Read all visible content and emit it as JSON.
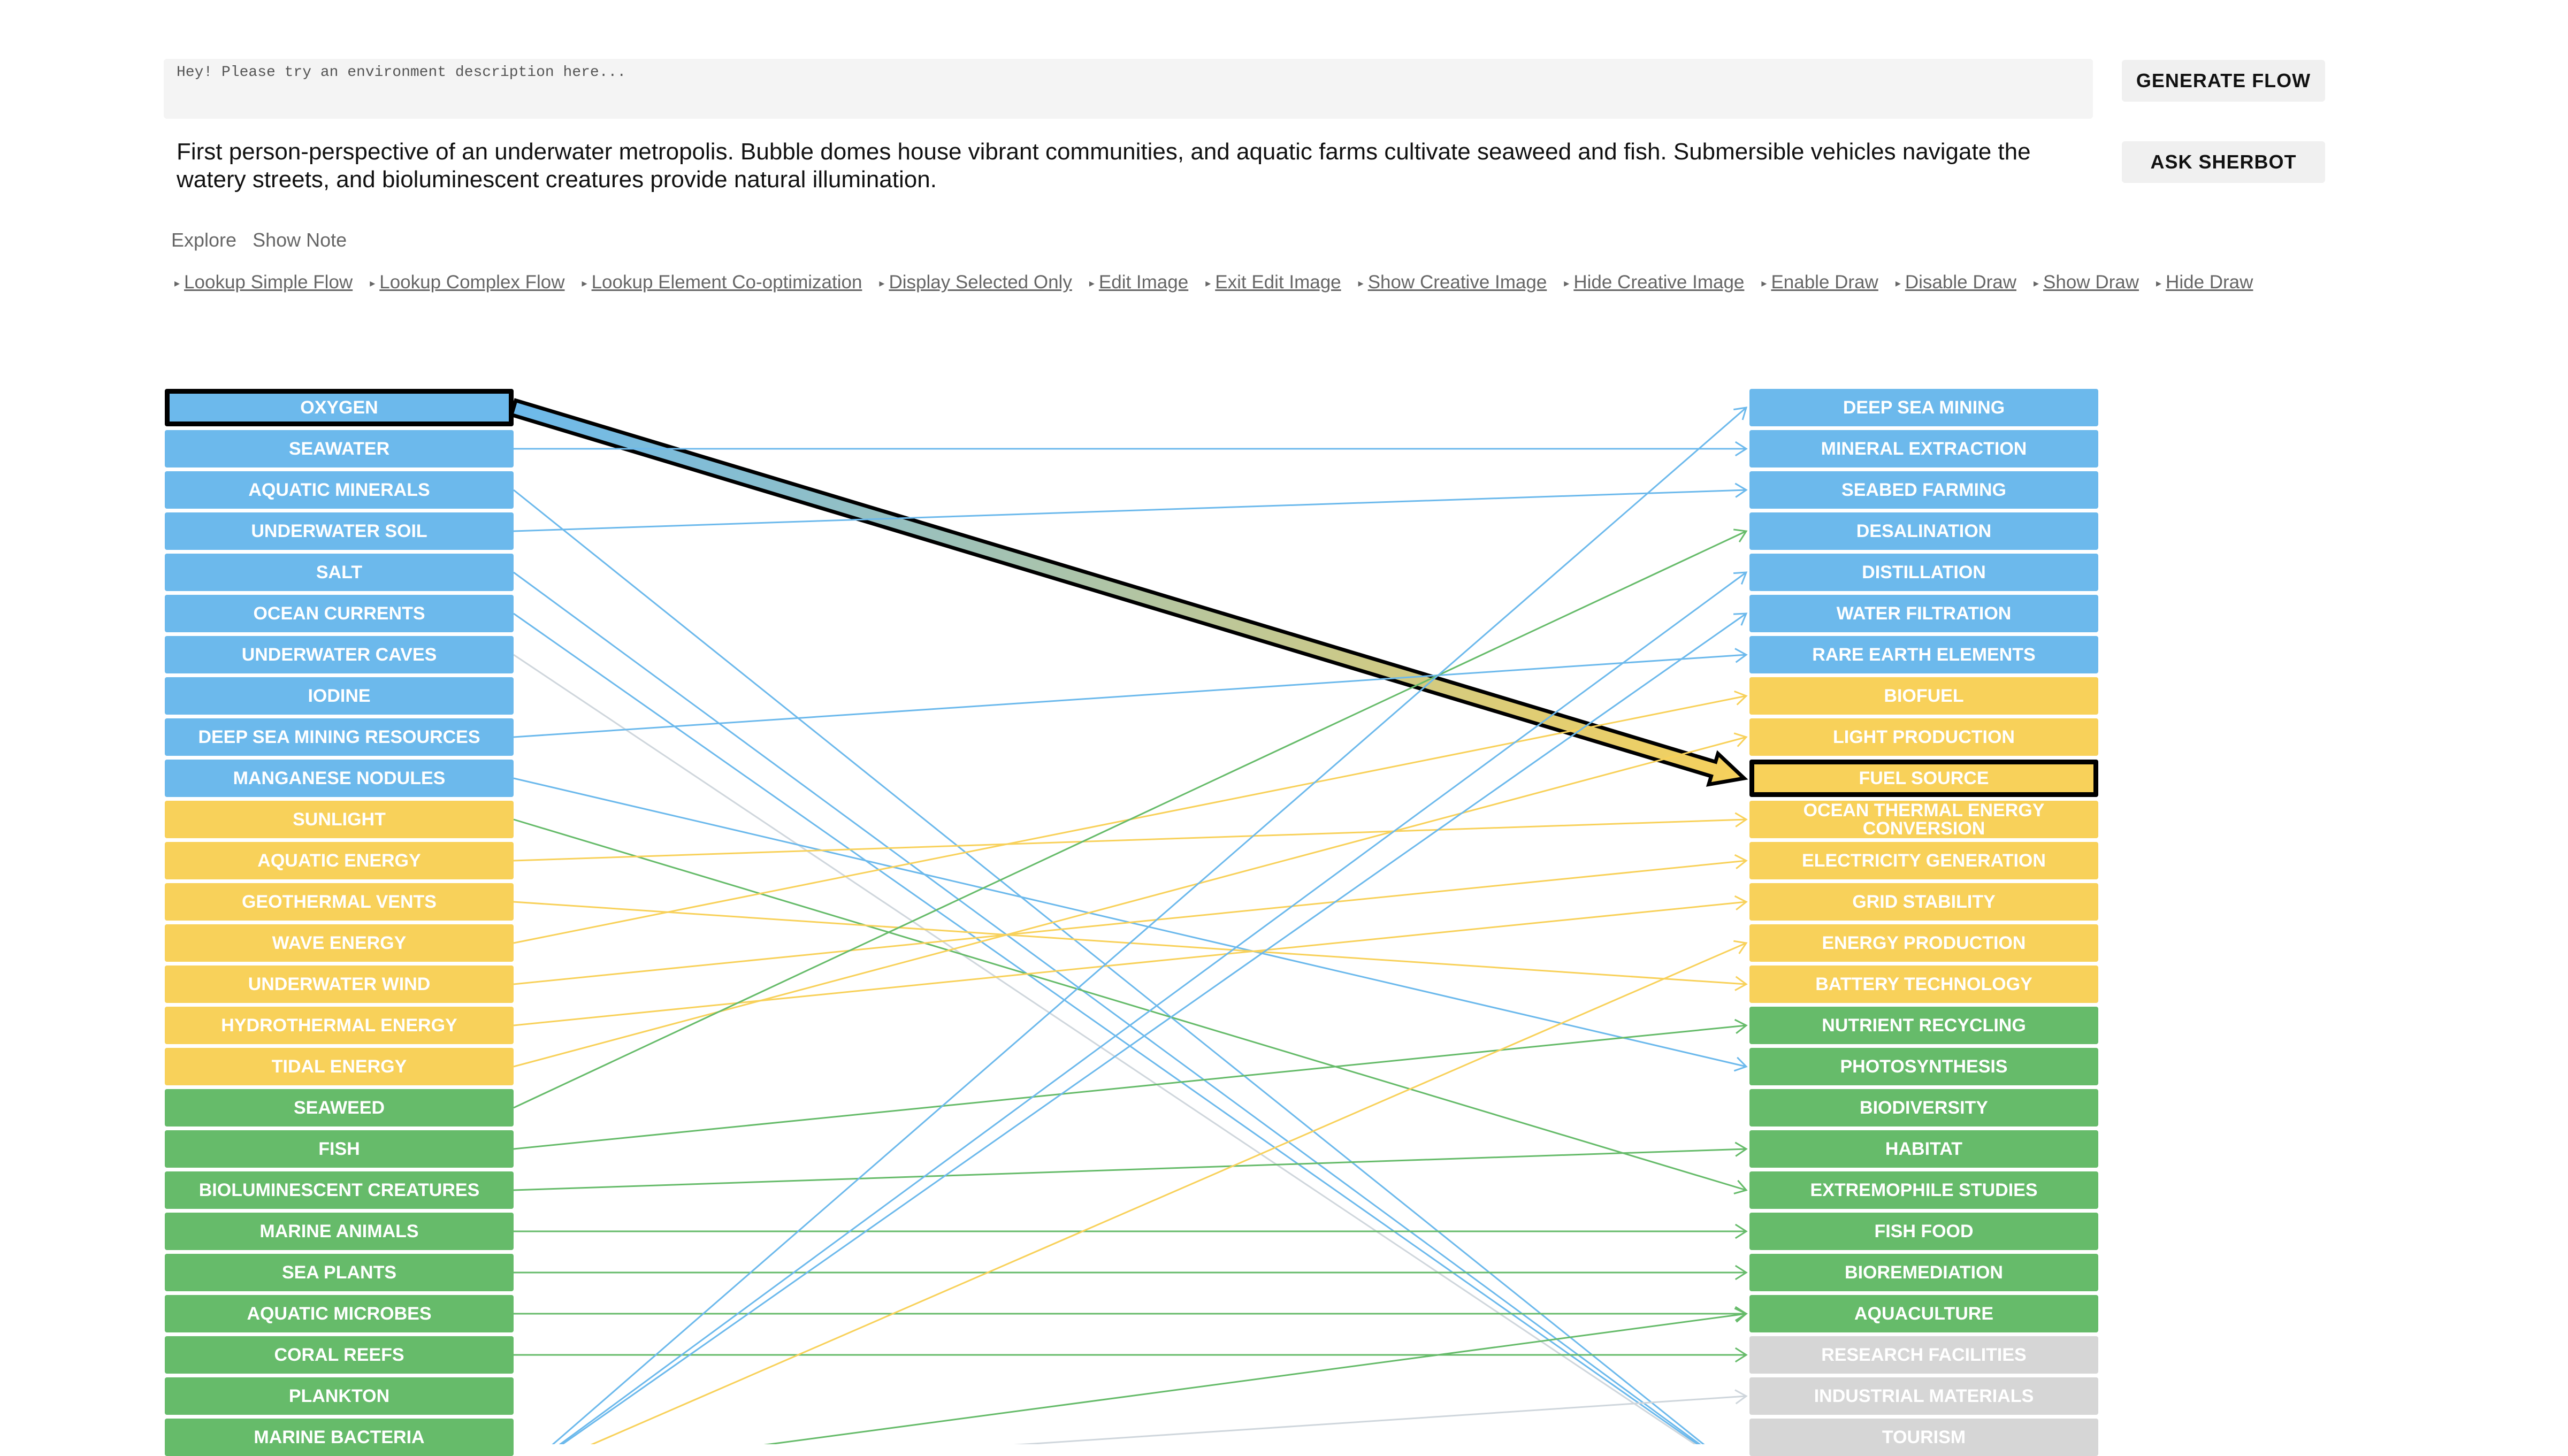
{
  "input": {
    "placeholder": "Hey! Please try an environment description here..."
  },
  "description": "First person-perspective of an underwater metropolis. Bubble domes house vibrant communities, and aquatic farms cultivate seaweed and fish. Submersible vehicles navigate the watery streets, and bioluminescent creatures provide natural illumination.",
  "buttons": {
    "generate_flow": "GENERATE FLOW",
    "ask_sherbot": "ASK SHERBOT"
  },
  "tabs": [
    "Explore",
    "Show Note"
  ],
  "links": [
    "Lookup Simple Flow",
    "Lookup Complex Flow",
    "Lookup Element Co-optimization",
    "Display Selected Only",
    "Edit Image",
    "Exit Edit Image",
    "Show Creative Image",
    "Hide Creative Image",
    "Enable Draw",
    "Disable Draw",
    "Show Draw",
    "Hide Draw"
  ],
  "colors": {
    "blue": "#6cb9ec",
    "yellow": "#f8d15a",
    "green": "#66bb6a",
    "gray": "#d6d6d6",
    "selected_border": "#000000"
  },
  "left_nodes": [
    {
      "label": "OXYGEN",
      "group": "blue",
      "selected": true
    },
    {
      "label": "SEAWATER",
      "group": "blue"
    },
    {
      "label": "AQUATIC MINERALS",
      "group": "blue"
    },
    {
      "label": "UNDERWATER SOIL",
      "group": "blue"
    },
    {
      "label": "SALT",
      "group": "blue"
    },
    {
      "label": "OCEAN CURRENTS",
      "group": "blue"
    },
    {
      "label": "UNDERWATER CAVES",
      "group": "blue"
    },
    {
      "label": "IODINE",
      "group": "blue"
    },
    {
      "label": "DEEP SEA MINING RESOURCES",
      "group": "blue"
    },
    {
      "label": "MANGANESE NODULES",
      "group": "blue"
    },
    {
      "label": "SUNLIGHT",
      "group": "yellow"
    },
    {
      "label": "AQUATIC ENERGY",
      "group": "yellow"
    },
    {
      "label": "GEOTHERMAL VENTS",
      "group": "yellow"
    },
    {
      "label": "WAVE ENERGY",
      "group": "yellow"
    },
    {
      "label": "UNDERWATER WIND",
      "group": "yellow"
    },
    {
      "label": "HYDROTHERMAL ENERGY",
      "group": "yellow"
    },
    {
      "label": "TIDAL ENERGY",
      "group": "yellow"
    },
    {
      "label": "SEAWEED",
      "group": "green"
    },
    {
      "label": "FISH",
      "group": "green"
    },
    {
      "label": "BIOLUMINESCENT CREATURES",
      "group": "green"
    },
    {
      "label": "MARINE ANIMALS",
      "group": "green"
    },
    {
      "label": "SEA PLANTS",
      "group": "green"
    },
    {
      "label": "AQUATIC MICROBES",
      "group": "green"
    },
    {
      "label": "CORAL REEFS",
      "group": "green"
    },
    {
      "label": "PLANKTON",
      "group": "green"
    },
    {
      "label": "MARINE BACTERIA",
      "group": "green"
    }
  ],
  "right_nodes": [
    {
      "label": "DEEP SEA MINING",
      "group": "blue"
    },
    {
      "label": "MINERAL EXTRACTION",
      "group": "blue"
    },
    {
      "label": "SEABED FARMING",
      "group": "blue"
    },
    {
      "label": "DESALINATION",
      "group": "blue"
    },
    {
      "label": "DISTILLATION",
      "group": "blue"
    },
    {
      "label": "WATER FILTRATION",
      "group": "blue"
    },
    {
      "label": "RARE EARTH ELEMENTS",
      "group": "blue"
    },
    {
      "label": "BIOFUEL",
      "group": "yellow"
    },
    {
      "label": "LIGHT PRODUCTION",
      "group": "yellow"
    },
    {
      "label": "FUEL SOURCE",
      "group": "yellow",
      "selected": true
    },
    {
      "label": "OCEAN THERMAL ENERGY CONVERSION",
      "group": "yellow"
    },
    {
      "label": "ELECTRICITY GENERATION",
      "group": "yellow"
    },
    {
      "label": "GRID STABILITY",
      "group": "yellow"
    },
    {
      "label": "ENERGY PRODUCTION",
      "group": "yellow"
    },
    {
      "label": "BATTERY TECHNOLOGY",
      "group": "yellow"
    },
    {
      "label": "NUTRIENT RECYCLING",
      "group": "green"
    },
    {
      "label": "PHOTOSYNTHESIS",
      "group": "green"
    },
    {
      "label": "BIODIVERSITY",
      "group": "green"
    },
    {
      "label": "HABITAT",
      "group": "green"
    },
    {
      "label": "EXTREMOPHILE STUDIES",
      "group": "green"
    },
    {
      "label": "FISH FOOD",
      "group": "green"
    },
    {
      "label": "BIOREMEDIATION",
      "group": "green"
    },
    {
      "label": "AQUACULTURE",
      "group": "green"
    },
    {
      "label": "RESEARCH FACILITIES",
      "group": "gray"
    },
    {
      "label": "INDUSTRIAL MATERIALS",
      "group": "gray"
    },
    {
      "label": "TOURISM",
      "group": "gray"
    }
  ],
  "links_flow": [
    {
      "from": 0,
      "to": 9,
      "highlight": true
    },
    {
      "from": 1,
      "to": 1,
      "color": "blue"
    },
    {
      "from": 3,
      "to": 2,
      "color": "blue"
    },
    {
      "from": 2,
      "to": 26,
      "color": "blue"
    },
    {
      "from": 4,
      "to": 26,
      "color": "blue"
    },
    {
      "from": 5,
      "to": 26,
      "color": "blue"
    },
    {
      "from": 6,
      "to": 26,
      "color": "gray"
    },
    {
      "from": 8,
      "to": 6,
      "color": "blue"
    },
    {
      "from": 9,
      "to": 16,
      "color": "blue"
    },
    {
      "from": 10,
      "to": 19,
      "color": "green"
    },
    {
      "from": 11,
      "to": 10,
      "color": "yellow"
    },
    {
      "from": 12,
      "to": 14,
      "color": "yellow"
    },
    {
      "from": 13,
      "to": 7,
      "color": "yellow"
    },
    {
      "from": 14,
      "to": 11,
      "color": "yellow"
    },
    {
      "from": 15,
      "to": 12,
      "color": "yellow"
    },
    {
      "from": 16,
      "to": 8,
      "color": "yellow"
    },
    {
      "from": 17,
      "to": 3,
      "color": "green"
    },
    {
      "from": 18,
      "to": 15,
      "color": "green"
    },
    {
      "from": 19,
      "to": 18,
      "color": "green"
    },
    {
      "from": 20,
      "to": 20,
      "color": "green"
    },
    {
      "from": 21,
      "to": 21,
      "color": "green"
    },
    {
      "from": 22,
      "to": 22,
      "color": "green"
    },
    {
      "from": 23,
      "to": 23,
      "color": "green"
    },
    {
      "from": 26,
      "to": 0,
      "color": "blue"
    },
    {
      "from": 26,
      "to": 4,
      "color": "blue"
    },
    {
      "from": 26,
      "to": 5,
      "color": "blue"
    },
    {
      "from": 26,
      "to": 13,
      "color": "yellow"
    },
    {
      "from": 26,
      "to": 22,
      "color": "green"
    },
    {
      "from": 26,
      "to": 24,
      "color": "gray"
    }
  ]
}
